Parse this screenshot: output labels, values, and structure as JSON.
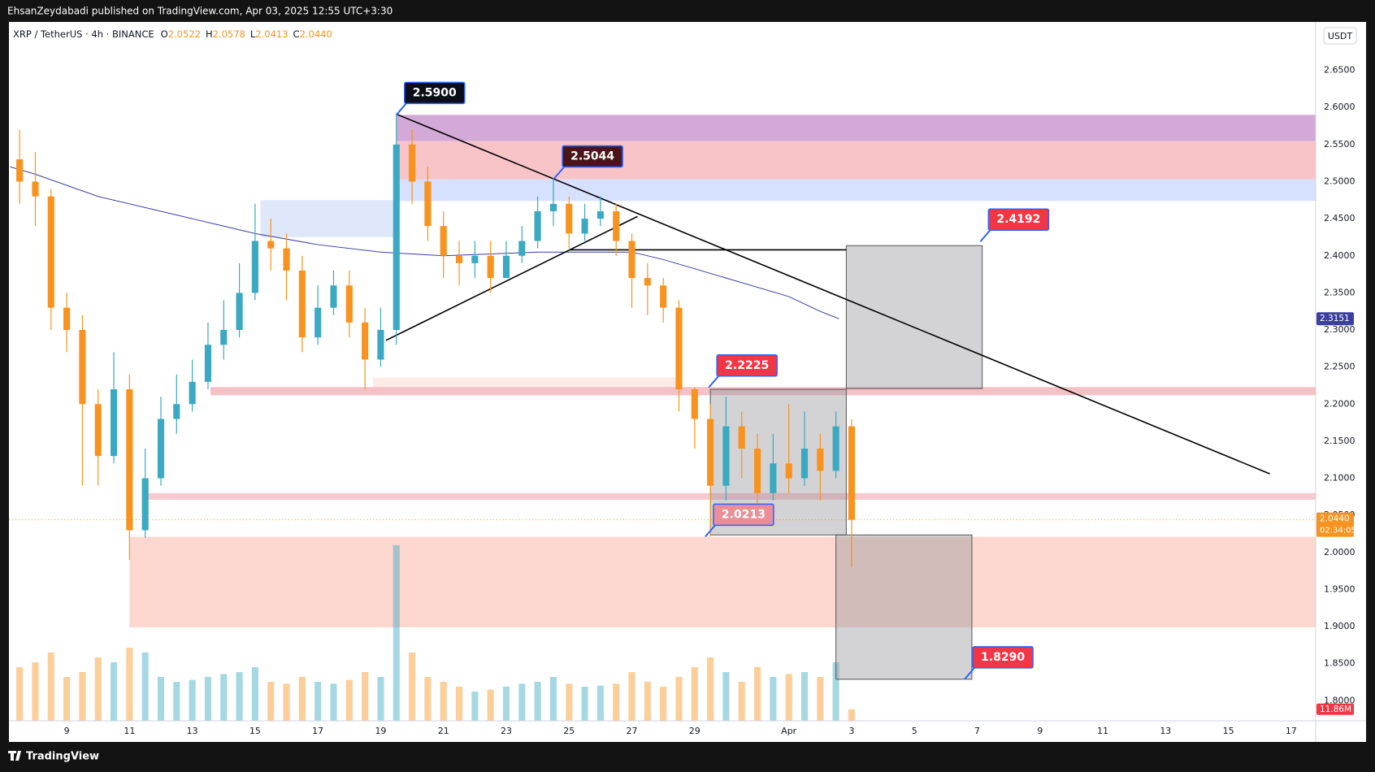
{
  "published": "EhsanZeydabadi published on TradingView.com, Apr 03, 2025 12:55 UTC+3:30",
  "brand": "TradingView",
  "chart_data": {
    "type": "candlestick",
    "title": "XRP / TetherUS · 4h · BINANCE",
    "ohlc": [
      {
        "letter": "O",
        "value": "2.0522"
      },
      {
        "letter": "H",
        "value": "2.0578"
      },
      {
        "letter": "L",
        "value": "2.0413"
      },
      {
        "letter": "C",
        "value": "2.0440"
      }
    ],
    "currency": "USDT",
    "up_color": "#3aa9c1",
    "down_color": "#f7931e",
    "xlim": [
      7.16,
      48.78
    ],
    "ylim": [
      1.773,
      2.712
    ],
    "xticks": [
      9,
      11,
      13,
      15,
      17,
      19,
      21,
      23,
      25,
      27,
      29,
      {
        "value": 32,
        "label": "Apr"
      },
      {
        "value": 34,
        "label": "3"
      },
      {
        "value": 36,
        "label": "5"
      },
      {
        "value": 38,
        "label": "7"
      },
      {
        "value": 40,
        "label": "9"
      },
      {
        "value": 42,
        "label": "11"
      },
      {
        "value": 44,
        "label": "13"
      },
      {
        "value": 46,
        "label": "15"
      },
      {
        "value": 48,
        "label": "17"
      }
    ],
    "yticks": [
      {
        "value": 1.8,
        "label": "1.8000"
      },
      {
        "value": 1.85,
        "label": "1.8500"
      },
      {
        "value": 1.9,
        "label": "1.9000"
      },
      {
        "value": 1.95,
        "label": "1.9500"
      },
      {
        "value": 2.0,
        "label": "2.0000"
      },
      {
        "value": 2.05,
        "label": "2.0500"
      },
      {
        "value": 2.1,
        "label": "2.1000"
      },
      {
        "value": 2.15,
        "label": "2.1500"
      },
      {
        "value": 2.2,
        "label": "2.2000"
      },
      {
        "value": 2.25,
        "label": "2.2500"
      },
      {
        "value": 2.3,
        "label": "2.3000"
      },
      {
        "value": 2.35,
        "label": "2.3500"
      },
      {
        "value": 2.4,
        "label": "2.4000"
      },
      {
        "value": 2.45,
        "label": "2.4500"
      },
      {
        "value": 2.5,
        "label": "2.5000"
      },
      {
        "value": 2.55,
        "label": "2.5500"
      },
      {
        "value": 2.6,
        "label": "2.6000"
      },
      {
        "value": 2.65,
        "label": "2.6500"
      }
    ],
    "x": [
      7.5,
      8,
      8.5,
      9,
      9.5,
      10,
      10.5,
      11,
      11.5,
      12,
      12.5,
      13,
      13.5,
      14,
      14.5,
      15,
      15.5,
      16,
      16.5,
      17,
      17.5,
      18,
      18.5,
      19,
      19.5,
      20,
      20.5,
      21,
      21.5,
      22,
      22.5,
      23,
      23.5,
      24,
      24.5,
      25,
      25.5,
      26,
      26.5,
      27,
      27.5,
      28,
      28.5,
      29,
      29.5,
      30,
      30.5,
      31,
      31.5,
      32,
      32.5,
      33,
      33.5,
      34
    ],
    "open": [
      2.53,
      2.5,
      2.48,
      2.33,
      2.3,
      2.2,
      2.13,
      2.22,
      2.03,
      2.1,
      2.18,
      2.2,
      2.23,
      2.28,
      2.3,
      2.35,
      2.42,
      2.41,
      2.38,
      2.29,
      2.33,
      2.36,
      2.31,
      2.26,
      2.3,
      2.55,
      2.5,
      2.44,
      2.4,
      2.39,
      2.4,
      2.37,
      2.4,
      2.42,
      2.46,
      2.47,
      2.43,
      2.45,
      2.46,
      2.42,
      2.37,
      2.36,
      2.33,
      2.22,
      2.18,
      2.09,
      2.17,
      2.14,
      2.08,
      2.12,
      2.1,
      2.14,
      2.11,
      2.17
    ],
    "high": [
      2.57,
      2.54,
      2.49,
      2.35,
      2.32,
      2.22,
      2.27,
      2.24,
      2.14,
      2.21,
      2.24,
      2.26,
      2.31,
      2.34,
      2.39,
      2.47,
      2.45,
      2.43,
      2.4,
      2.36,
      2.38,
      2.38,
      2.33,
      2.33,
      2.59,
      2.57,
      2.52,
      2.46,
      2.42,
      2.42,
      2.42,
      2.42,
      2.44,
      2.48,
      2.5044,
      2.48,
      2.47,
      2.48,
      2.47,
      2.43,
      2.39,
      2.37,
      2.34,
      2.2225,
      2.2,
      2.21,
      2.19,
      2.16,
      2.16,
      2.2,
      2.19,
      2.16,
      2.19,
      2.18
    ],
    "low": [
      2.47,
      2.44,
      2.3,
      2.27,
      2.09,
      2.09,
      2.12,
      1.99,
      2.02,
      2.09,
      2.16,
      2.19,
      2.22,
      2.26,
      2.29,
      2.34,
      2.38,
      2.34,
      2.27,
      2.28,
      2.32,
      2.29,
      2.22,
      2.25,
      2.28,
      2.47,
      2.42,
      2.37,
      2.36,
      2.37,
      2.35,
      2.37,
      2.39,
      2.41,
      2.44,
      2.41,
      2.42,
      2.44,
      2.4,
      2.33,
      2.32,
      2.31,
      2.19,
      2.14,
      2.0213,
      2.07,
      2.1,
      2.06,
      2.07,
      2.08,
      2.09,
      2.07,
      2.1,
      1.98
    ],
    "close": [
      2.5,
      2.48,
      2.33,
      2.3,
      2.2,
      2.13,
      2.22,
      2.03,
      2.1,
      2.18,
      2.2,
      2.23,
      2.28,
      2.3,
      2.35,
      2.42,
      2.41,
      2.38,
      2.29,
      2.33,
      2.36,
      2.31,
      2.26,
      2.3,
      2.55,
      2.5,
      2.44,
      2.4,
      2.39,
      2.4,
      2.37,
      2.4,
      2.42,
      2.46,
      2.47,
      2.43,
      2.45,
      2.46,
      2.42,
      2.37,
      2.36,
      2.33,
      2.22,
      2.18,
      2.09,
      2.17,
      2.14,
      2.08,
      2.12,
      2.1,
      2.14,
      2.11,
      2.17,
      2.044
    ],
    "volume": [
      55,
      60,
      70,
      45,
      50,
      65,
      60,
      75,
      70,
      45,
      40,
      42,
      45,
      48,
      50,
      55,
      40,
      38,
      45,
      40,
      38,
      42,
      50,
      45,
      180,
      70,
      45,
      40,
      35,
      30,
      32,
      35,
      38,
      40,
      45,
      38,
      35,
      36,
      38,
      50,
      40,
      35,
      45,
      55,
      65,
      50,
      40,
      55,
      45,
      48,
      50,
      45,
      60,
      11.86
    ],
    "volume_tag": {
      "value": 11.86,
      "label": "11.86M"
    },
    "ma": {
      "color": "#3c3f9e",
      "x": [
        7.2,
        8,
        10,
        12,
        14,
        15,
        17,
        19,
        21,
        24,
        26,
        27,
        28,
        30,
        32,
        33,
        33.6
      ],
      "values": [
        2.52,
        2.51,
        2.48,
        2.46,
        2.44,
        2.43,
        2.415,
        2.405,
        2.4,
        2.405,
        2.405,
        2.405,
        2.395,
        2.37,
        2.345,
        2.325,
        2.315
      ]
    },
    "ma_tag": {
      "value": 2.3151,
      "label": "2.3151"
    },
    "last_price": {
      "value": 2.044,
      "label": "2.0440"
    },
    "countdown": "02:34:05",
    "zones": [
      {
        "x": [
          19.5,
          48.78
        ],
        "y": [
          2.5545,
          2.59
        ],
        "color": "#d3a9d8"
      },
      {
        "x": [
          19.5,
          48.78
        ],
        "y": [
          2.503,
          2.5545
        ],
        "color": "#f9c4c8"
      },
      {
        "x": [
          19.5,
          48.78
        ],
        "y": [
          2.474,
          2.503
        ],
        "color": "#d6e0ff"
      },
      {
        "x": [
          15.17,
          19.59
        ],
        "y": [
          2.425,
          2.475
        ],
        "color": "#dfe7fb"
      },
      {
        "x": [
          18.75,
          28.4
        ],
        "y": [
          2.223,
          2.236
        ],
        "color": "#fdebe5"
      },
      {
        "x": [
          13.58,
          48.78
        ],
        "y": [
          2.212,
          2.223
        ],
        "color": "#f5c0c6"
      },
      {
        "x": [
          11.4,
          48.78
        ],
        "y": [
          2.071,
          2.08
        ],
        "color": "#f8c9ce"
      },
      {
        "x": [
          11,
          48.78
        ],
        "y": [
          1.899,
          2.021
        ],
        "color": "#fbd7d0"
      }
    ],
    "boxes": [
      {
        "x": [
          29.5,
          33.83
        ],
        "y": [
          2.0236,
          2.22
        ]
      },
      {
        "x": [
          33.83,
          38.16
        ],
        "y": [
          2.221,
          2.4137
        ]
      },
      {
        "x": [
          33.5,
          37.83
        ],
        "y": [
          1.829,
          2.0236
        ]
      }
    ],
    "lines": [
      {
        "x": [
          19.5,
          47.32
        ],
        "y": [
          2.591,
          2.106
        ]
      },
      {
        "x": [
          19.17,
          27.18
        ],
        "y": [
          2.286,
          2.453
        ]
      },
      {
        "x": [
          25.03,
          33.83
        ],
        "y": [
          2.408,
          2.408
        ]
      }
    ],
    "annotations": [
      {
        "x": 19.5,
        "value": 2.59,
        "label": "2.5900",
        "color": "#0b0e17"
      },
      {
        "x": 24.53,
        "value": 2.5044,
        "label": "2.5044",
        "color": "#4a1518"
      },
      {
        "x": 29.45,
        "value": 2.2225,
        "label": "2.2225",
        "color": "#f23645"
      },
      {
        "x": 29.34,
        "value": 2.0213,
        "label": "2.0213",
        "color": "#e88f99"
      },
      {
        "x": 38.1,
        "value": 2.4192,
        "label": "2.4192",
        "color": "#f23645"
      },
      {
        "x": 37.6,
        "value": 1.829,
        "label": "1.8290",
        "color": "#f23645"
      }
    ]
  }
}
